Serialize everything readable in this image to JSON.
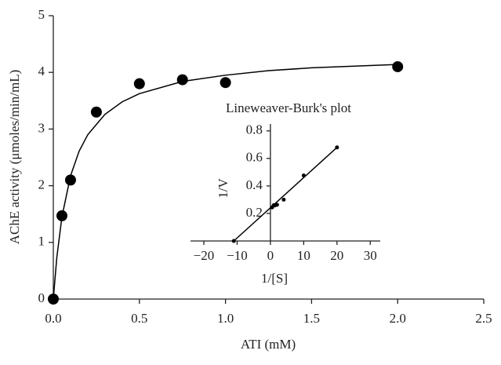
{
  "chart_data": [
    {
      "type": "scatter",
      "x_label": "ATI (mM)",
      "y_label": "AChE activity (μmoles/min/mL)",
      "xlim": [
        0,
        2.5
      ],
      "xticks": [
        {
          "value": 0,
          "label": "0.0"
        },
        0.5,
        {
          "value": 1,
          "label": "1.0"
        },
        1.5,
        {
          "value": 2,
          "label": "2.0"
        },
        2.5
      ],
      "ylim": [
        0,
        5
      ],
      "yticks": [
        0,
        1,
        2,
        3,
        4,
        5
      ],
      "series": [
        {
          "style": "marker",
          "color": "#000000",
          "x": [
            0,
            0.05,
            0.1,
            0.25,
            0.5,
            0.75,
            1.0,
            2.0
          ],
          "values": [
            0,
            1.47,
            2.1,
            3.3,
            3.8,
            3.87,
            3.82,
            4.1
          ]
        },
        {
          "style": "line",
          "color": "#000000",
          "x": [
            0,
            0.02,
            0.05,
            0.1,
            0.15,
            0.2,
            0.3,
            0.4,
            0.5,
            0.75,
            1.0,
            1.25,
            1.5,
            1.75,
            2.0
          ],
          "values": [
            0,
            0.725,
            1.45,
            2.175,
            2.61,
            2.9,
            3.26,
            3.48,
            3.625,
            3.84,
            3.95,
            4.03,
            4.08,
            4.11,
            4.14
          ]
        }
      ]
    },
    {
      "type": "scatter",
      "title": "Lineweaver-Burk's plot",
      "x_label": "1/[S]",
      "y_label": "1/V",
      "xlim": [
        -24,
        33
      ],
      "xticks": [
        {
          "value": -20,
          "label": "−20"
        },
        {
          "value": -10,
          "label": "−10"
        },
        0,
        10,
        20,
        30
      ],
      "ylim": [
        0,
        0.85
      ],
      "yticks": [
        0.2,
        0.4,
        0.6,
        0.8
      ],
      "series": [
        {
          "style": "marker",
          "color": "#000000",
          "x": [
            -11,
            0.5,
            1,
            1.33,
            2,
            4,
            10,
            20
          ],
          "values": [
            0,
            0.244,
            0.26,
            0.258,
            0.263,
            0.3,
            0.476,
            0.68
          ]
        },
        {
          "style": "line",
          "color": "#000000",
          "x": [
            -11,
            20
          ],
          "values": [
            0,
            0.68
          ]
        }
      ]
    }
  ]
}
